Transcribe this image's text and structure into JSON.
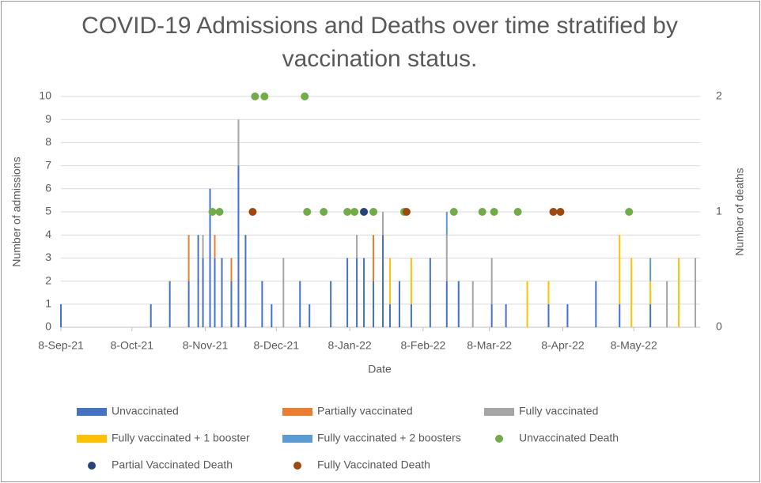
{
  "chart_data": {
    "type": "bar",
    "title": "COVID-19 Admissions and Deaths over time stratified by vaccination status.",
    "x_label": "Date",
    "y_label": "Number of admissions",
    "y2_label": "Number of deaths",
    "xlim": [
      "2021-09-08",
      "2022-06-05"
    ],
    "xticks": [
      {
        "value": "2021-09-08",
        "label": "8-Sep-21"
      },
      {
        "value": "2021-10-08",
        "label": "8-Oct-21"
      },
      {
        "value": "2021-11-08",
        "label": "8-Nov-21"
      },
      {
        "value": "2021-12-08",
        "label": "8-Dec-21"
      },
      {
        "value": "2022-01-08",
        "label": "8-Jan-22"
      },
      {
        "value": "2022-02-08",
        "label": "8-Feb-22"
      },
      {
        "value": "2022-03-08",
        "label": "8-Mar-22"
      },
      {
        "value": "2022-04-08",
        "label": "8-Apr-22"
      },
      {
        "value": "2022-05-08",
        "label": "8-May-22"
      }
    ],
    "ylim": [
      0,
      10
    ],
    "yticks": [
      0,
      1,
      2,
      3,
      4,
      5,
      6,
      7,
      8,
      9,
      10
    ],
    "y2lim": [
      0,
      2
    ],
    "y2ticks": [
      0,
      1,
      2
    ],
    "grid": true,
    "legend": "bottom",
    "x": [
      "2021-09-08",
      "2021-10-16",
      "2021-10-24",
      "2021-11-01",
      "2021-11-05",
      "2021-11-07",
      "2021-11-10",
      "2021-11-12",
      "2021-11-15",
      "2021-11-19",
      "2021-11-22",
      "2021-11-25",
      "2021-12-02",
      "2021-12-06",
      "2021-12-11",
      "2021-12-18",
      "2021-12-22",
      "2021-12-31",
      "2022-01-07",
      "2022-01-11",
      "2022-01-14",
      "2022-01-18",
      "2022-01-22",
      "2022-01-25",
      "2022-01-29",
      "2022-02-03",
      "2022-02-11",
      "2022-02-18",
      "2022-02-23",
      "2022-03-01",
      "2022-03-09",
      "2022-03-15",
      "2022-03-24",
      "2022-04-02",
      "2022-04-10",
      "2022-04-22",
      "2022-05-02",
      "2022-05-07",
      "2022-05-15",
      "2022-05-22",
      "2022-05-27",
      "2022-06-03"
    ],
    "series": [
      {
        "name": "Unvaccinated",
        "color": "#4472c4",
        "values": [
          1,
          1,
          2,
          2,
          4,
          3,
          6,
          3,
          3,
          2,
          7,
          4,
          2,
          1,
          0,
          2,
          1,
          2,
          3,
          3,
          3,
          2,
          4,
          1,
          2,
          1,
          3,
          2,
          2,
          0,
          1,
          1,
          0,
          1,
          1,
          2,
          1,
          0,
          1,
          0,
          0,
          0
        ]
      },
      {
        "name": "Partially vaccinated",
        "color": "#ed7d31",
        "values": [
          0,
          0,
          0,
          2,
          0,
          0,
          0,
          1,
          0,
          1,
          0,
          0,
          0,
          0,
          0,
          0,
          0,
          0,
          0,
          0,
          0,
          2,
          0,
          0,
          0,
          0,
          0,
          0,
          0,
          0,
          0,
          0,
          0,
          0,
          0,
          0,
          0,
          0,
          0,
          0,
          0,
          0
        ]
      },
      {
        "name": "Fully vaccinated",
        "color": "#a5a5a5",
        "values": [
          0,
          0,
          0,
          0,
          0,
          1,
          0,
          0,
          0,
          0,
          2,
          0,
          0,
          0,
          3,
          0,
          0,
          0,
          0,
          1,
          0,
          0,
          1,
          0,
          0,
          0,
          0,
          2,
          0,
          2,
          2,
          0,
          0,
          0,
          0,
          0,
          0,
          0,
          0,
          2,
          0,
          3
        ]
      },
      {
        "name": "Fully vaccinated + 1 booster",
        "color": "#ffc000",
        "values": [
          0,
          0,
          0,
          0,
          0,
          0,
          0,
          0,
          0,
          0,
          0,
          0,
          0,
          0,
          0,
          0,
          0,
          0,
          0,
          0,
          0,
          0,
          0,
          2,
          0,
          2,
          0,
          0,
          0,
          0,
          0,
          0,
          2,
          1,
          0,
          0,
          3,
          3,
          1,
          0,
          3,
          0
        ]
      },
      {
        "name": "Fully vaccinated + 2 boosters",
        "color": "#5b9bd5",
        "values": [
          0,
          0,
          0,
          0,
          0,
          0,
          0,
          0,
          0,
          0,
          0,
          0,
          0,
          0,
          0,
          0,
          0,
          0,
          0,
          0,
          0,
          0,
          0,
          0,
          0,
          0,
          0,
          1,
          0,
          0,
          0,
          0,
          0,
          0,
          0,
          0,
          0,
          0,
          1,
          0,
          0,
          0
        ]
      }
    ],
    "deaths": [
      {
        "name": "Unvaccinated Death",
        "color": "#70ad47",
        "axis": "y2",
        "x": [
          "2021-11-11",
          "2021-11-14",
          "2021-11-29",
          "2021-12-03",
          "2021-12-20",
          "2021-12-21",
          "2021-12-28",
          "2022-01-07",
          "2022-01-10",
          "2022-01-18",
          "2022-01-31",
          "2022-02-21",
          "2022-03-05",
          "2022-03-10",
          "2022-03-20",
          "2022-05-06"
        ],
        "values": [
          1,
          1,
          2,
          2,
          2,
          1,
          1,
          1,
          1,
          1,
          1,
          1,
          1,
          1,
          1,
          1
        ]
      },
      {
        "name": "Partial Vaccinated Death",
        "color": "#264478",
        "axis": "y2",
        "x": [
          "2022-01-14"
        ],
        "values": [
          1
        ]
      },
      {
        "name": "Fully Vaccinated Death",
        "color": "#9e480e",
        "axis": "y2",
        "x": [
          "2021-11-28",
          "2022-02-01",
          "2022-04-04",
          "2022-04-07"
        ],
        "values": [
          1,
          1,
          1,
          1
        ]
      }
    ]
  }
}
